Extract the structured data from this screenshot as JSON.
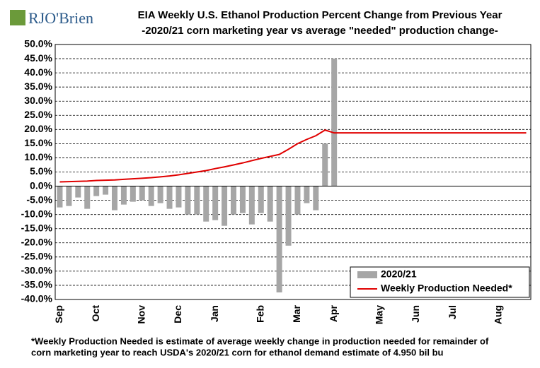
{
  "logo": "RJO'Brien",
  "chart_data": {
    "type": "bar-line",
    "title": "EIA Weekly U.S. Ethanol Production Percent Change from Previous Year",
    "subtitle": "-2020/21 corn marketing year vs average \"needed\" production change-",
    "footnote": [
      "*Weekly Production Needed is estimate of average weekly change in production needed for remainder of",
      "corn marketing year to reach USDA's 2020/21 corn for ethanol demand estimate of 4.950 bil bu"
    ],
    "categories": [
      "Sep",
      null,
      null,
      null,
      "Oct",
      null,
      null,
      null,
      null,
      "Nov",
      null,
      null,
      null,
      "Dec",
      null,
      null,
      null,
      "Jan",
      null,
      null,
      null,
      null,
      "Feb",
      null,
      null,
      null,
      "Mar",
      null,
      null,
      null,
      "Apr",
      null,
      null,
      null,
      null,
      "May",
      null,
      null,
      null,
      "Jun",
      null,
      null,
      null,
      "Jul",
      null,
      null,
      null,
      null,
      "Aug",
      null,
      null,
      null
    ],
    "series": [
      {
        "name": "2020/21",
        "type": "bar",
        "color": "#a6a6a6",
        "values": [
          -7.5,
          -7,
          -4,
          -8,
          -3.5,
          -3,
          -8.5,
          -6.5,
          -5.5,
          -5,
          -7,
          -6,
          -8,
          -7.5,
          -10,
          -10,
          -12.5,
          -12,
          -14,
          -10,
          -9.5,
          -13.5,
          -9.5,
          -12.5,
          -37.5,
          -21,
          -10,
          -6,
          -8.5,
          15,
          45,
          null,
          null,
          null,
          null,
          null,
          null,
          null,
          null,
          null,
          null,
          null,
          null,
          null,
          null,
          null,
          null,
          null,
          null,
          null,
          null,
          null
        ]
      },
      {
        "name": "Weekly Production Needed*",
        "type": "line",
        "color": "#e00000",
        "values": [
          1.5,
          1.6,
          1.7,
          1.8,
          2.0,
          2.1,
          2.2,
          2.4,
          2.6,
          2.8,
          3.0,
          3.3,
          3.6,
          4.0,
          4.5,
          5.0,
          5.5,
          6.2,
          6.8,
          7.5,
          8.2,
          9.0,
          9.8,
          10.5,
          11.2,
          13.0,
          15.0,
          16.5,
          17.8,
          19.8,
          18.8,
          18.8,
          18.8,
          18.8,
          18.8,
          18.8,
          18.8,
          18.8,
          18.8,
          18.8,
          18.8,
          18.8,
          18.8,
          18.8,
          18.8,
          18.8,
          18.8,
          18.8,
          18.8,
          18.8,
          18.8,
          18.8
        ]
      }
    ],
    "ylim": [
      -40,
      50
    ],
    "yticks": [
      {
        "value": -40,
        "label": "-40.0%"
      },
      {
        "value": -35,
        "label": "-35.0%"
      },
      {
        "value": -30,
        "label": "-30.0%"
      },
      {
        "value": -25,
        "label": "-25.0%"
      },
      {
        "value": -20,
        "label": "-20.0%"
      },
      {
        "value": -15,
        "label": "-15.0%"
      },
      {
        "value": -10,
        "label": "-10.0%"
      },
      {
        "value": -5,
        "label": "-5.0%"
      },
      {
        "value": 0,
        "label": "0.0%"
      },
      {
        "value": 5,
        "label": "5.0%"
      },
      {
        "value": 10,
        "label": "10.0%"
      },
      {
        "value": 15,
        "label": "15.0%"
      },
      {
        "value": 20,
        "label": "20.0%"
      },
      {
        "value": 25,
        "label": "25.0%"
      },
      {
        "value": 30,
        "label": "30.0%"
      },
      {
        "value": 35,
        "label": "35.0%"
      },
      {
        "value": 40,
        "label": "40.0%"
      },
      {
        "value": 45,
        "label": "45.0%"
      },
      {
        "value": 50,
        "label": "50.0%"
      }
    ],
    "grid": true,
    "legend": "lower right"
  }
}
